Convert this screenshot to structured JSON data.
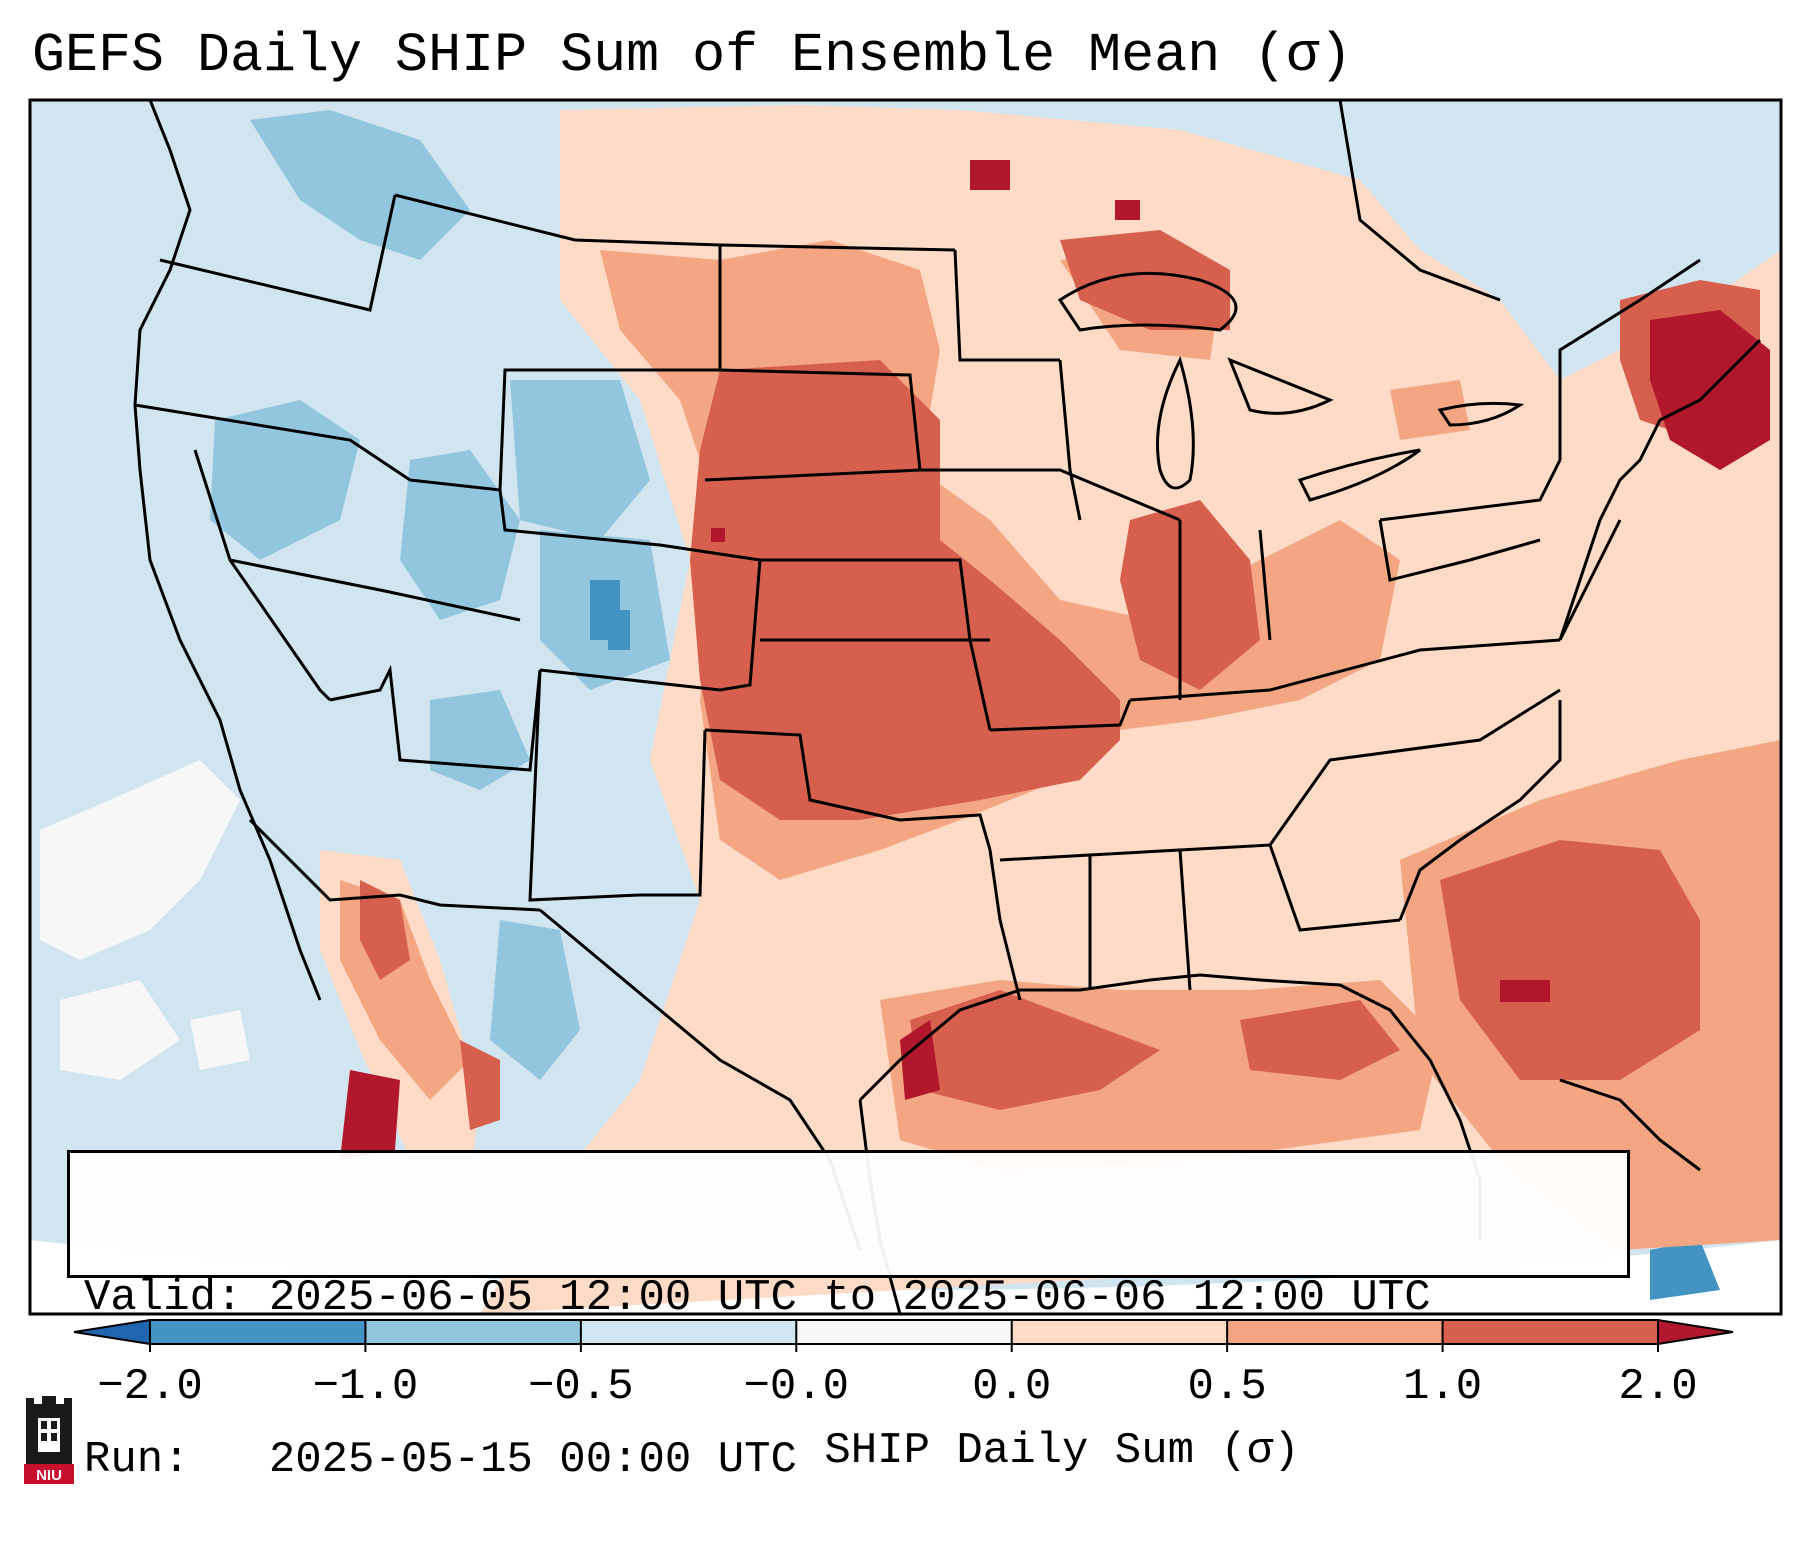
{
  "title": "GEFS Daily SHIP Sum of Ensemble Mean (σ)",
  "info": {
    "valid_label": "Valid:",
    "valid_value": "2025-06-05 12:00 UTC to 2025-06-06 12:00 UTC",
    "run_label": "Run:",
    "run_value": "2025-05-15 00:00 UTC"
  },
  "colorbar": {
    "label": "SHIP Daily Sum (σ)",
    "ticks": [
      "−2.0",
      "−1.0",
      "−0.5",
      "−0.0",
      "0.0",
      "0.5",
      "1.0",
      "2.0"
    ],
    "colors": [
      "#4393c3",
      "#92c5de",
      "#d1e5f0",
      "#f7f7f7",
      "#fddbc7",
      "#f4a582",
      "#d6604d"
    ],
    "under_color": "#2166ac",
    "over_color": "#b2182b"
  },
  "logo": {
    "text": "NIU",
    "color": "#c8102e"
  },
  "map_data": {
    "background_color": "#d1e5f0",
    "ocean_color": "#d1e5f0",
    "features": [
      "state-borders",
      "coastlines",
      "great-lakes",
      "country-borders"
    ],
    "anomaly_regions": [
      {
        "name": "great-plains-high",
        "level": "1.0 to 2.0"
      },
      {
        "name": "new-england-max",
        "level": "> 2.0"
      },
      {
        "name": "gulf-of-mexico",
        "level": "0.5 to 2.0"
      },
      {
        "name": "west-negative",
        "level": "-1.0 to -0.5"
      }
    ]
  }
}
